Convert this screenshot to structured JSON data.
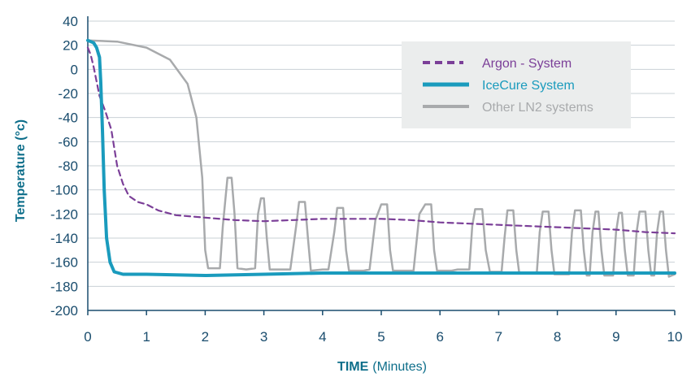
{
  "chart_data": {
    "type": "line",
    "xlabel_bold": "TIME",
    "xlabel_rest": "(Minutes)",
    "ylabel": "Temperature (°c)",
    "xlim": [
      0,
      10
    ],
    "ylim": [
      -200,
      40
    ],
    "x_ticks": [
      "0",
      "1",
      "2",
      "3",
      "4",
      "5",
      "6",
      "7",
      "8",
      "9",
      "10"
    ],
    "y_ticks": [
      "40",
      "20",
      "0",
      "-20",
      "-40",
      "-60",
      "-80",
      "-100",
      "-120",
      "-140",
      "-160",
      "-180",
      "-200"
    ],
    "grid": "horizontal",
    "legend_position": "top-right",
    "series": [
      {
        "name": "Other LN2 systems",
        "color": "#a8aaac",
        "style": "solid",
        "points": [
          [
            0,
            24
          ],
          [
            0.5,
            23
          ],
          [
            1,
            18
          ],
          [
            1.4,
            8
          ],
          [
            1.7,
            -12
          ],
          [
            1.85,
            -40
          ],
          [
            1.95,
            -90
          ],
          [
            2.0,
            -150
          ],
          [
            2.05,
            -165
          ],
          [
            2.25,
            -165
          ],
          [
            2.3,
            -130
          ],
          [
            2.38,
            -90
          ],
          [
            2.45,
            -90
          ],
          [
            2.5,
            -120
          ],
          [
            2.55,
            -165
          ],
          [
            2.7,
            -166
          ],
          [
            2.85,
            -165
          ],
          [
            2.9,
            -120
          ],
          [
            2.95,
            -107
          ],
          [
            3.0,
            -107
          ],
          [
            3.05,
            -140
          ],
          [
            3.1,
            -166
          ],
          [
            3.35,
            -166
          ],
          [
            3.45,
            -166
          ],
          [
            3.55,
            -130
          ],
          [
            3.6,
            -110
          ],
          [
            3.7,
            -110
          ],
          [
            3.75,
            -140
          ],
          [
            3.8,
            -167
          ],
          [
            4.0,
            -166
          ],
          [
            4.1,
            -166
          ],
          [
            4.2,
            -135
          ],
          [
            4.25,
            -115
          ],
          [
            4.35,
            -115
          ],
          [
            4.4,
            -150
          ],
          [
            4.45,
            -167
          ],
          [
            4.7,
            -167
          ],
          [
            4.8,
            -166
          ],
          [
            4.9,
            -125
          ],
          [
            5.0,
            -112
          ],
          [
            5.1,
            -112
          ],
          [
            5.15,
            -150
          ],
          [
            5.2,
            -167
          ],
          [
            5.5,
            -167
          ],
          [
            5.55,
            -167
          ],
          [
            5.65,
            -120
          ],
          [
            5.75,
            -112
          ],
          [
            5.85,
            -112
          ],
          [
            5.9,
            -150
          ],
          [
            5.95,
            -167
          ],
          [
            6.2,
            -167
          ],
          [
            6.3,
            -166
          ],
          [
            6.5,
            -166
          ],
          [
            6.55,
            -130
          ],
          [
            6.6,
            -116
          ],
          [
            6.72,
            -116
          ],
          [
            6.78,
            -150
          ],
          [
            6.85,
            -168
          ],
          [
            7.0,
            -168
          ],
          [
            7.05,
            -168
          ],
          [
            7.1,
            -140
          ],
          [
            7.15,
            -117
          ],
          [
            7.25,
            -117
          ],
          [
            7.3,
            -150
          ],
          [
            7.35,
            -169
          ],
          [
            7.5,
            -169
          ],
          [
            7.65,
            -169
          ],
          [
            7.7,
            -135
          ],
          [
            7.75,
            -118
          ],
          [
            7.85,
            -118
          ],
          [
            7.9,
            -150
          ],
          [
            7.95,
            -170
          ],
          [
            8.1,
            -170
          ],
          [
            8.2,
            -170
          ],
          [
            8.25,
            -135
          ],
          [
            8.3,
            -117
          ],
          [
            8.4,
            -117
          ],
          [
            8.45,
            -150
          ],
          [
            8.5,
            -171
          ],
          [
            8.55,
            -171
          ],
          [
            8.6,
            -135
          ],
          [
            8.65,
            -118
          ],
          [
            8.7,
            -118
          ],
          [
            8.75,
            -150
          ],
          [
            8.8,
            -171
          ],
          [
            8.95,
            -171
          ],
          [
            9.0,
            -135
          ],
          [
            9.05,
            -119
          ],
          [
            9.1,
            -119
          ],
          [
            9.15,
            -150
          ],
          [
            9.2,
            -171
          ],
          [
            9.3,
            -171
          ],
          [
            9.35,
            -135
          ],
          [
            9.4,
            -118
          ],
          [
            9.5,
            -118
          ],
          [
            9.55,
            -150
          ],
          [
            9.6,
            -171
          ],
          [
            9.65,
            -171
          ],
          [
            9.7,
            -135
          ],
          [
            9.75,
            -118
          ],
          [
            9.8,
            -118
          ],
          [
            9.85,
            -150
          ],
          [
            9.9,
            -172
          ],
          [
            10,
            -170
          ]
        ]
      },
      {
        "name": "Argon - System",
        "color": "#7b3f98",
        "style": "dashed",
        "points": [
          [
            0,
            18
          ],
          [
            0.05,
            12
          ],
          [
            0.1,
            2
          ],
          [
            0.15,
            -10
          ],
          [
            0.2,
            -22
          ],
          [
            0.3,
            -35
          ],
          [
            0.4,
            -50
          ],
          [
            0.45,
            -65
          ],
          [
            0.5,
            -80
          ],
          [
            0.6,
            -95
          ],
          [
            0.7,
            -105
          ],
          [
            0.85,
            -110
          ],
          [
            1,
            -112
          ],
          [
            1.2,
            -117
          ],
          [
            1.5,
            -121
          ],
          [
            2,
            -123
          ],
          [
            2.5,
            -125
          ],
          [
            3,
            -126
          ],
          [
            3.5,
            -125
          ],
          [
            4,
            -124
          ],
          [
            5,
            -124
          ],
          [
            5.5,
            -125
          ],
          [
            6,
            -127
          ],
          [
            6.5,
            -128
          ],
          [
            7,
            -129
          ],
          [
            8,
            -131
          ],
          [
            9,
            -133
          ],
          [
            9.5,
            -135
          ],
          [
            10,
            -136
          ]
        ]
      },
      {
        "name": "IceCure System",
        "color": "#1a9bbd",
        "style": "solid",
        "points": [
          [
            0,
            24
          ],
          [
            0.1,
            22
          ],
          [
            0.15,
            18
          ],
          [
            0.2,
            10
          ],
          [
            0.22,
            -10
          ],
          [
            0.25,
            -50
          ],
          [
            0.28,
            -100
          ],
          [
            0.32,
            -140
          ],
          [
            0.38,
            -160
          ],
          [
            0.45,
            -168
          ],
          [
            0.6,
            -170
          ],
          [
            1,
            -170
          ],
          [
            2,
            -171
          ],
          [
            3,
            -170
          ],
          [
            4,
            -169
          ],
          [
            5,
            -169
          ],
          [
            6,
            -169
          ],
          [
            7,
            -169
          ],
          [
            8,
            -169
          ],
          [
            9,
            -169
          ],
          [
            10,
            -169
          ]
        ]
      }
    ]
  }
}
